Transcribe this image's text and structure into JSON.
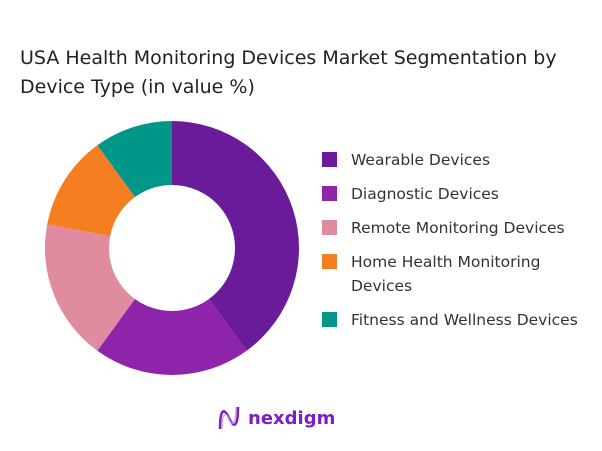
{
  "chart_data": {
    "type": "pie",
    "variant": "donut",
    "title": "USA Health Monitoring Devices Market Segmentation by Device Type (in value %)",
    "categories": [
      "Wearable Devices",
      "Diagnostic Devices",
      "Remote Monitoring Devices",
      "Home Health Monitoring Devices",
      "Fitness and Wellness Devices"
    ],
    "values": [
      40,
      20,
      18,
      12,
      10
    ],
    "colors": [
      "#6a1b9a",
      "#8e24aa",
      "#e08ba0",
      "#f57f20",
      "#009688"
    ],
    "legend_position": "right"
  },
  "logo": {
    "text": "nexdigm",
    "color": "#7a1fc2"
  }
}
